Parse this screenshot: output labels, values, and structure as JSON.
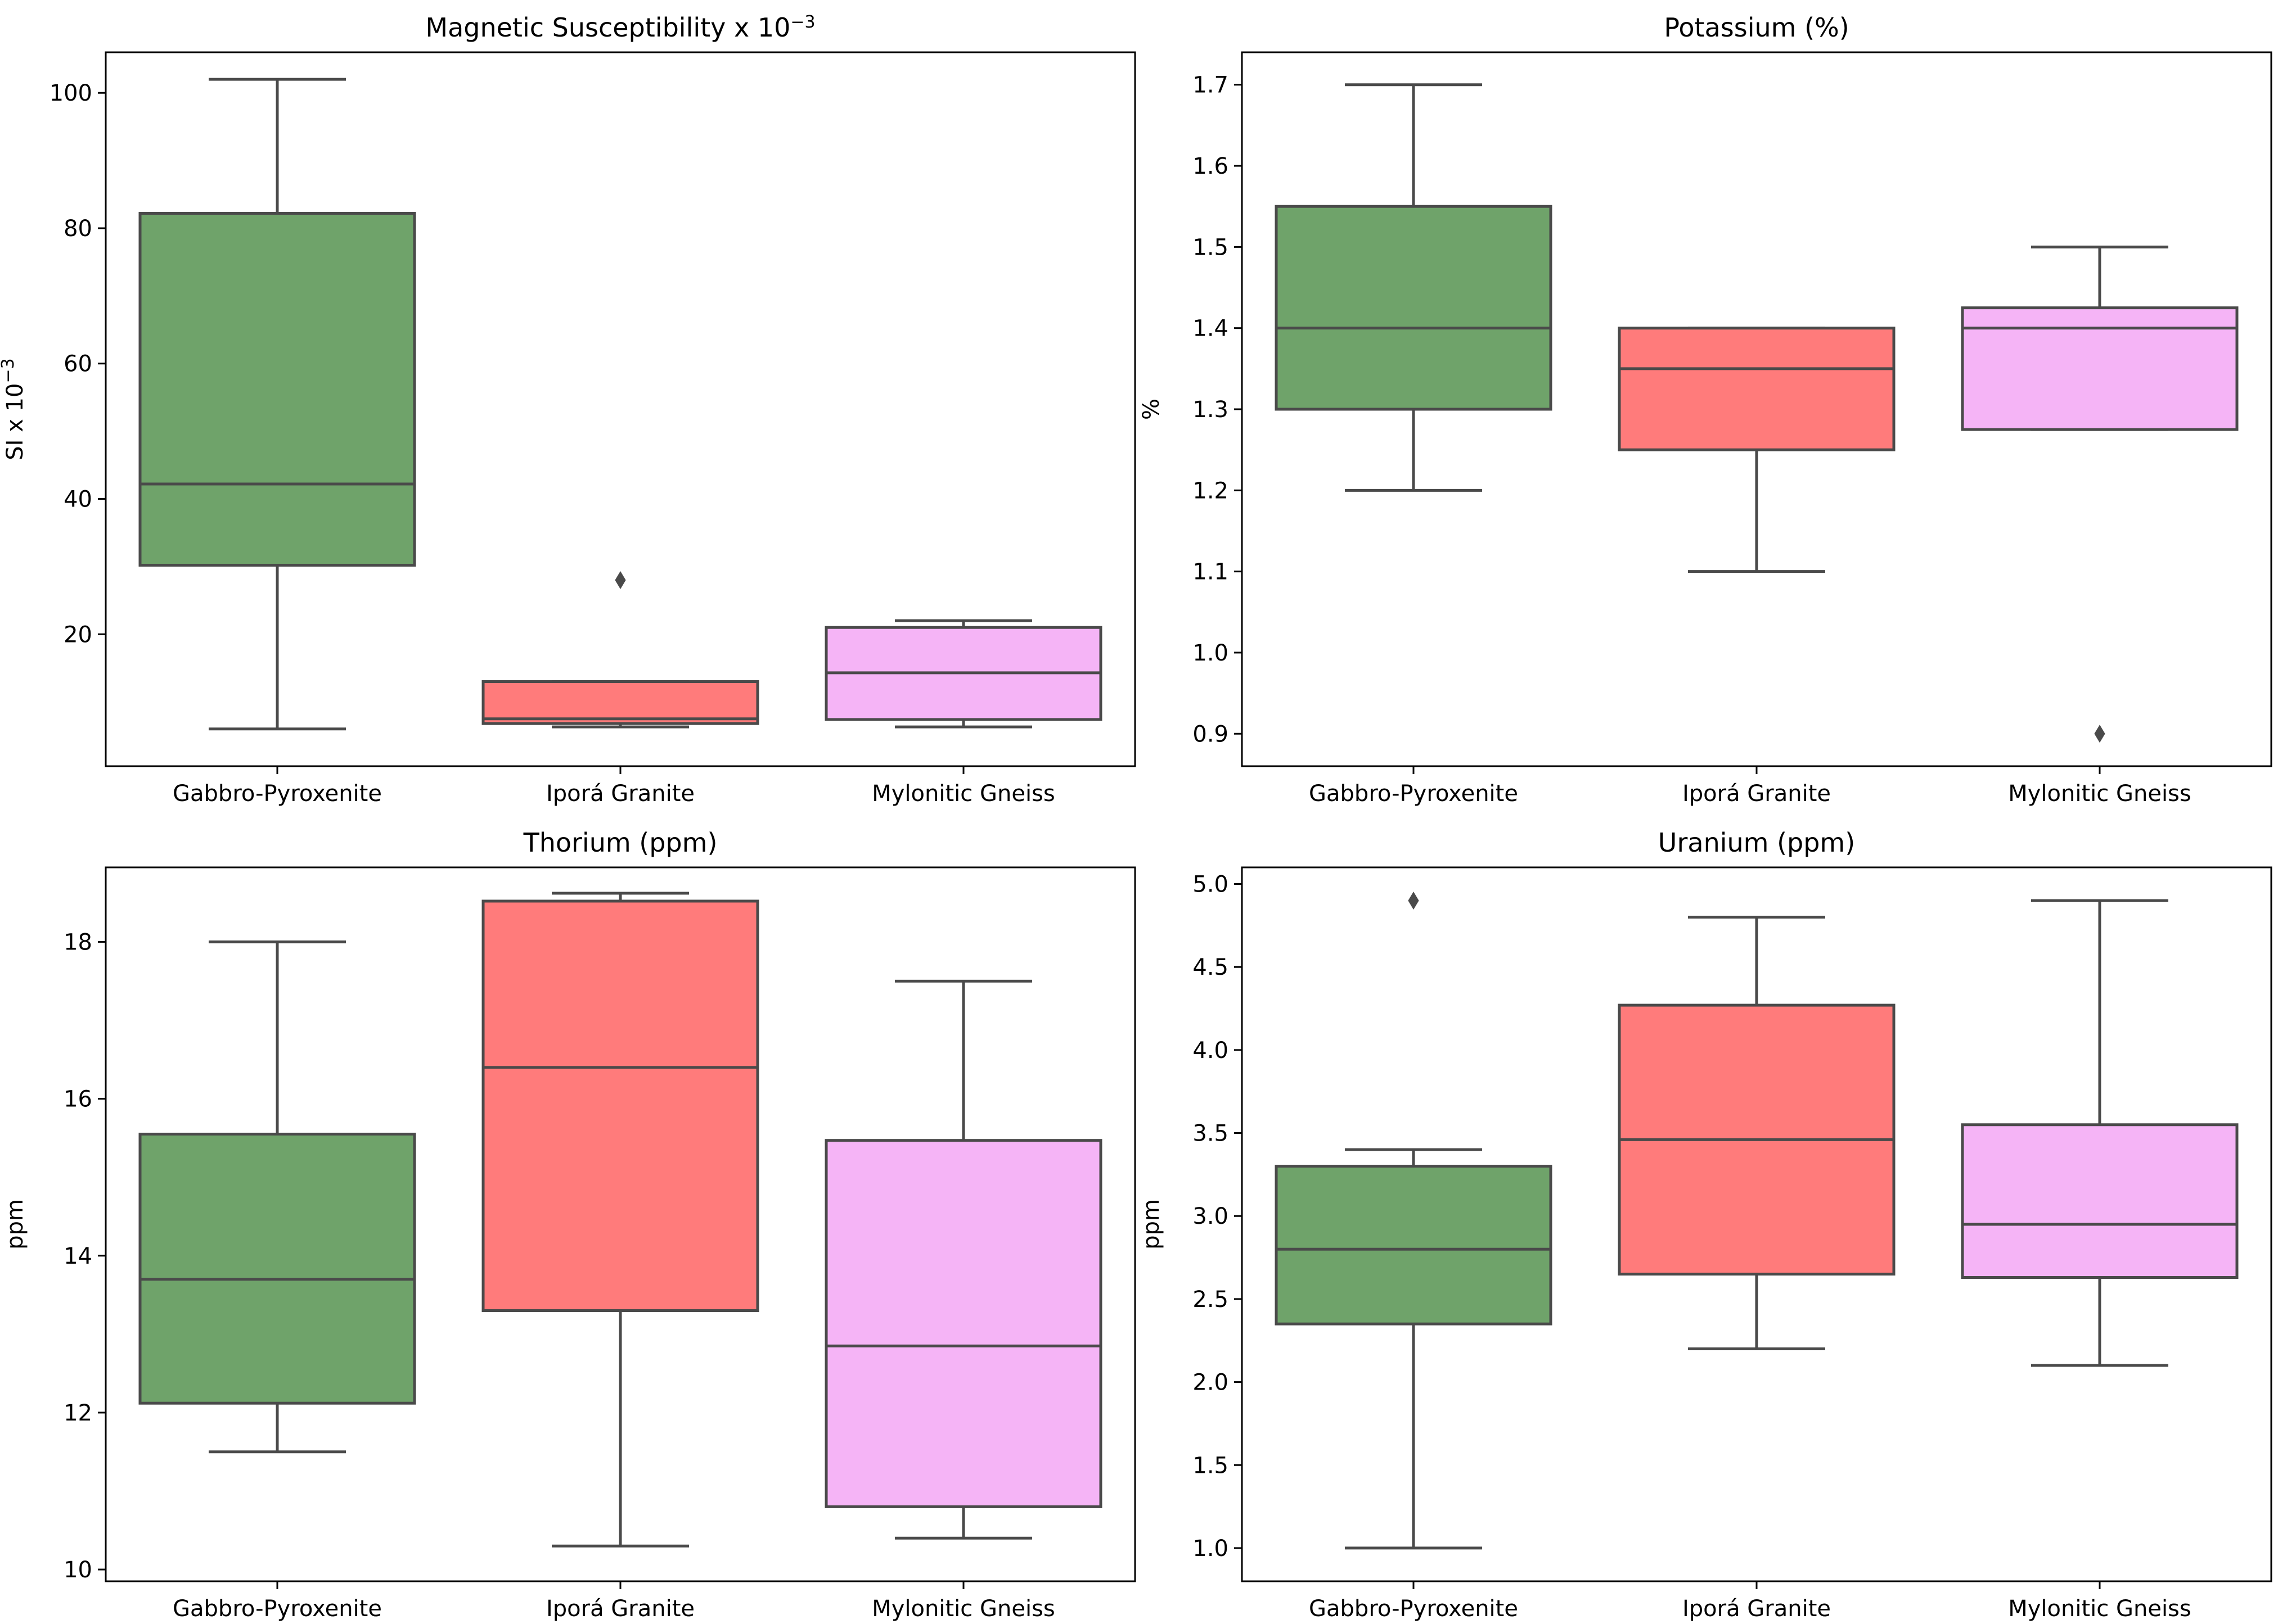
{
  "chart_data": [
    {
      "type": "box",
      "title": "Magnetic Susceptibility x 10",
      "title_superscript": "−3",
      "ylabel": "SI x 10",
      "ylabel_superscript": "−3",
      "ylim": [
        0.5,
        106
      ],
      "yticks": [
        20,
        40,
        60,
        80,
        100
      ],
      "categories": [
        "Gabbro-Pyroxenite",
        "Iporá Granite",
        "Mylonitic Gneiss"
      ],
      "colors": [
        "#6fa36a",
        "#ff7b7b",
        "#f5b4f6"
      ],
      "boxes": [
        {
          "whislo": 6,
          "q1": 30.2,
          "med": 42.2,
          "q3": 82.2,
          "whishi": 102,
          "fliers": []
        },
        {
          "whislo": 6.3,
          "q1": 6.8,
          "med": 7.5,
          "q3": 13,
          "whishi": 13,
          "fliers": [
            28
          ]
        },
        {
          "whislo": 6.3,
          "q1": 7.4,
          "med": 14.3,
          "q3": 21,
          "whishi": 22,
          "fliers": []
        }
      ]
    },
    {
      "type": "box",
      "title": "Potassium (%)",
      "ylabel": "%",
      "ylim": [
        0.86,
        1.74
      ],
      "yticks": [
        "0.9",
        "1.0",
        "1.1",
        "1.2",
        "1.3",
        "1.4",
        "1.5",
        "1.6",
        "1.7"
      ],
      "categories": [
        "Gabbro-Pyroxenite",
        "Iporá Granite",
        "Mylonitic Gneiss"
      ],
      "colors": [
        "#6fa36a",
        "#ff7b7b",
        "#f5b4f6"
      ],
      "boxes": [
        {
          "whislo": 1.2,
          "q1": 1.3,
          "med": 1.4,
          "q3": 1.55,
          "whishi": 1.7,
          "fliers": []
        },
        {
          "whislo": 1.1,
          "q1": 1.25,
          "med": 1.35,
          "q3": 1.4,
          "whishi": 1.4,
          "fliers": []
        },
        {
          "whislo": 1.275,
          "q1": 1.275,
          "med": 1.4,
          "q3": 1.425,
          "whishi": 1.5,
          "fliers": [
            0.9
          ]
        }
      ]
    },
    {
      "type": "box",
      "title": "Thorium (ppm)",
      "ylabel": "ppm",
      "ylim": [
        9.85,
        18.95
      ],
      "yticks": [
        10,
        12,
        14,
        16,
        18
      ],
      "categories": [
        "Gabbro-Pyroxenite",
        "Iporá Granite",
        "Mylonitic Gneiss"
      ],
      "colors": [
        "#6fa36a",
        "#ff7b7b",
        "#f5b4f6"
      ],
      "boxes": [
        {
          "whislo": 11.5,
          "q1": 12.12,
          "med": 13.7,
          "q3": 15.55,
          "whishi": 18,
          "fliers": []
        },
        {
          "whislo": 10.3,
          "q1": 13.3,
          "med": 16.4,
          "q3": 18.52,
          "whishi": 18.62,
          "fliers": []
        },
        {
          "whislo": 10.4,
          "q1": 10.8,
          "med": 12.85,
          "q3": 15.47,
          "whishi": 17.5,
          "fliers": []
        }
      ]
    },
    {
      "type": "box",
      "title": "Uranium (ppm)",
      "ylabel": "ppm",
      "ylim": [
        0.8,
        5.1
      ],
      "yticks": [
        "1.0",
        "1.5",
        "2.0",
        "2.5",
        "3.0",
        "3.5",
        "4.0",
        "4.5",
        "5.0"
      ],
      "categories": [
        "Gabbro-Pyroxenite",
        "Iporá Granite",
        "Mylonitic Gneiss"
      ],
      "colors": [
        "#6fa36a",
        "#ff7b7b",
        "#f5b4f6"
      ],
      "boxes": [
        {
          "whislo": 1.0,
          "q1": 2.35,
          "med": 2.8,
          "q3": 3.3,
          "whishi": 3.4,
          "fliers": [
            4.9
          ]
        },
        {
          "whislo": 2.2,
          "q1": 2.65,
          "med": 3.46,
          "q3": 4.27,
          "whishi": 4.8,
          "fliers": []
        },
        {
          "whislo": 2.1,
          "q1": 2.63,
          "med": 2.95,
          "q3": 3.55,
          "whishi": 4.9,
          "fliers": []
        }
      ]
    }
  ],
  "style": {
    "line_color": "#4a4a4a",
    "axes_color": "#000000",
    "background": "#ffffff"
  }
}
